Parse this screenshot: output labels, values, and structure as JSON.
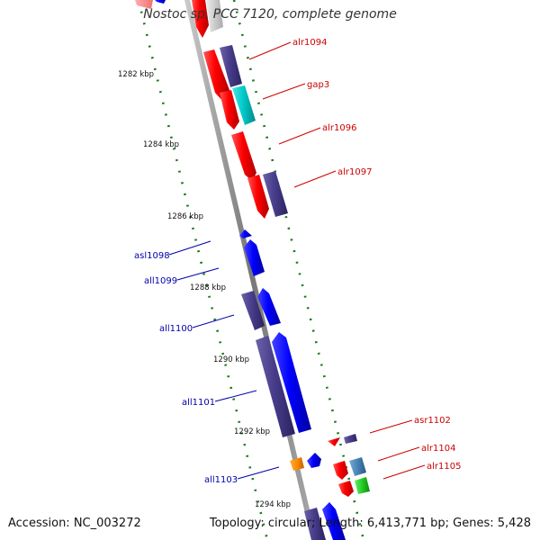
{
  "title": "Nostoc sp. PCC 7120, complete genome",
  "footer": {
    "accession": "Accession: NC_003272",
    "topology": "Topology: circular; Length: 6,413,771 bp; Genes: 5,428"
  },
  "colors": {
    "forward_red": "#ff1a1a",
    "reverse_blue": "#1010f0",
    "dark_purple": "#4a3f8c",
    "cyan": "#22cccc",
    "orange": "#ff8c00",
    "steel_blue": "#4682b4",
    "green": "#33cc33",
    "label_red": "#cc0000",
    "label_blue": "#0000aa",
    "tick_green": "#1a7a1a",
    "axis_gray": "#888888"
  },
  "ticks": [
    "1282 kbp",
    "1284 kbp",
    "1286 kbp",
    "1288 kbp",
    "1290 kbp",
    "1292 kbp",
    "1294 kbp"
  ],
  "genes_right": [
    {
      "label": "alr1094"
    },
    {
      "label": "gap3"
    },
    {
      "label": "alr1096"
    },
    {
      "label": "alr1097"
    },
    {
      "label": "asr1102"
    },
    {
      "label": "alr1104"
    },
    {
      "label": "alr1105"
    }
  ],
  "genes_left": [
    {
      "label": "asl1098"
    },
    {
      "label": "all1099"
    },
    {
      "label": "all1100"
    },
    {
      "label": "all1101"
    },
    {
      "label": "all1103"
    }
  ]
}
